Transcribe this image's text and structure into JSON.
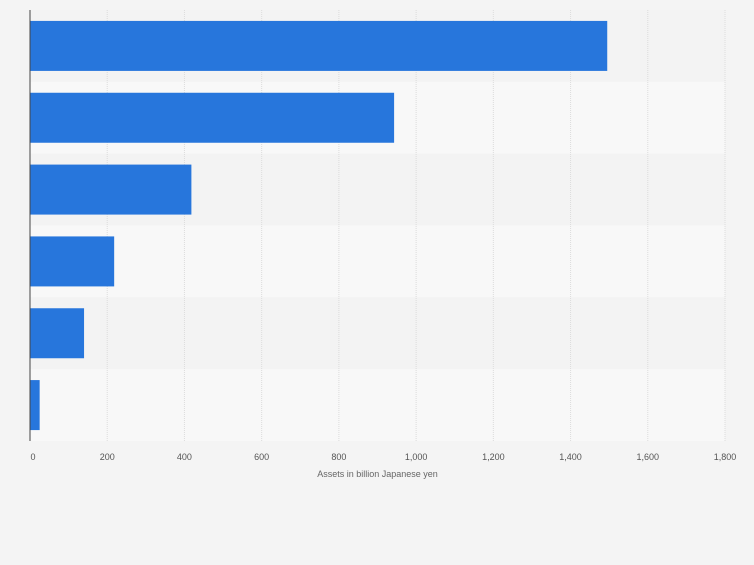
{
  "chart_data": {
    "type": "bar",
    "orientation": "horizontal",
    "categories": [
      "",
      "",
      "",
      "",
      "",
      ""
    ],
    "values": [
      1495,
      943,
      418,
      218,
      140,
      25
    ],
    "title": "",
    "xlabel": "Assets in billion Japanese yen",
    "ylabel": "",
    "xlim": [
      0,
      1800
    ],
    "xticks": [
      0,
      200,
      400,
      600,
      800,
      1000,
      1200,
      1400,
      1600,
      1800
    ],
    "xtick_labels": [
      "0",
      "200",
      "400",
      "600",
      "800",
      "1,000",
      "1,200",
      "1,400",
      "1,600",
      "1,800"
    ],
    "grid": true,
    "legend": "none",
    "colors": {
      "bar": "#2776dc",
      "background": "#f4f4f4",
      "band_light": "#f8f8f8",
      "band_dark": "#f3f3f3",
      "grid": "#dcdcdc",
      "axis": "#444444",
      "tick_text": "#555555",
      "label_text": "#666666"
    }
  }
}
